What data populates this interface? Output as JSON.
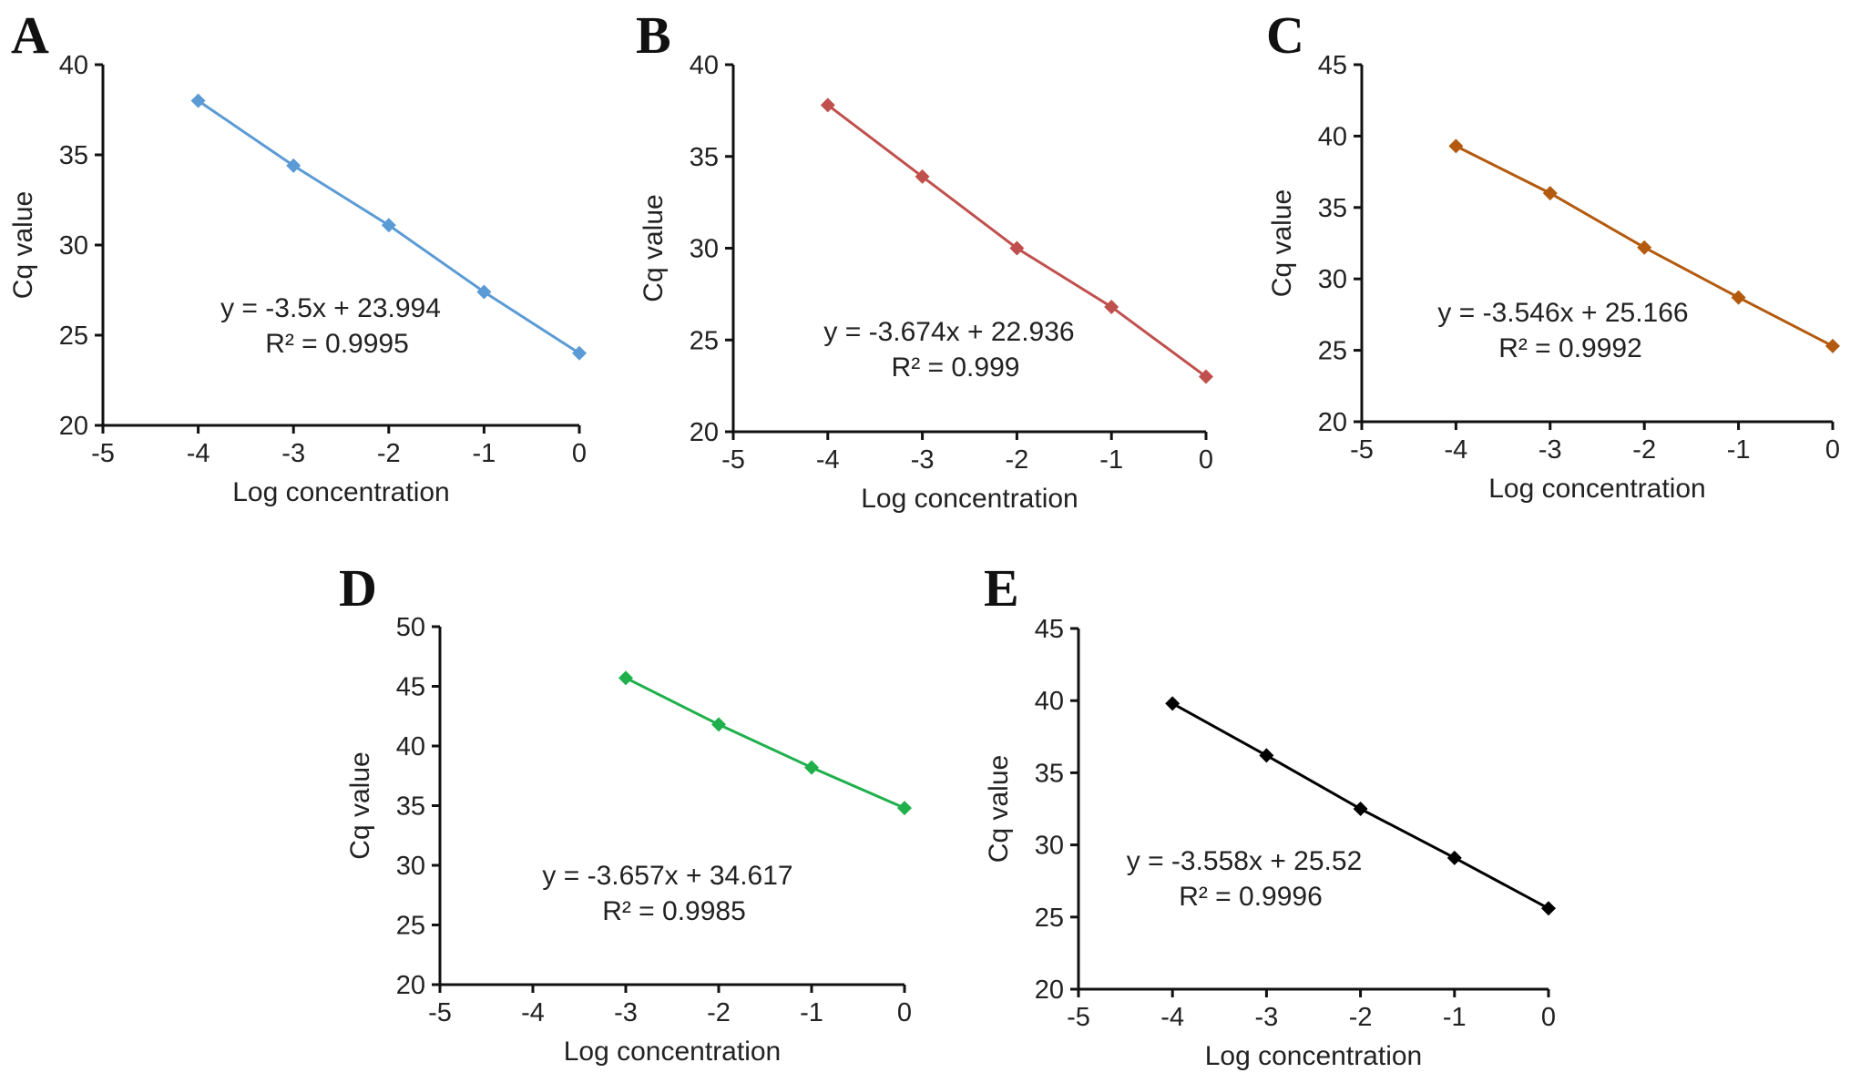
{
  "chart_data": [
    {
      "panel": "A",
      "type": "line",
      "x": [
        -4,
        -3,
        -2,
        -1,
        0
      ],
      "y": [
        38.0,
        34.4,
        31.1,
        27.4,
        24.0
      ],
      "color": "#5b9bd5",
      "xlabel": "Log concentration",
      "ylabel": "Cq value",
      "xlim": [
        -5,
        0
      ],
      "ylim": [
        20,
        40
      ],
      "xticks": [
        "-5",
        "-4",
        "-3",
        "-2",
        "-1",
        "0"
      ],
      "yticks": [
        "20",
        "25",
        "30",
        "35",
        "40"
      ],
      "equation": "y = -3.5x + 23.994",
      "r2": "R² = 0.9995",
      "grid": false
    },
    {
      "panel": "B",
      "type": "line",
      "x": [
        -4,
        -3,
        -2,
        -1,
        0
      ],
      "y": [
        37.8,
        33.9,
        30.0,
        26.8,
        23.0
      ],
      "color": "#c0504d",
      "xlabel": "Log concentration",
      "ylabel": "Cq value",
      "xlim": [
        -5,
        0
      ],
      "ylim": [
        20,
        40
      ],
      "xticks": [
        "-5",
        "-4",
        "-3",
        "-2",
        "-1",
        "0"
      ],
      "yticks": [
        "20",
        "25",
        "30",
        "35",
        "40"
      ],
      "equation": "y = -3.674x + 22.936",
      "r2": "R² = 0.999",
      "grid": false
    },
    {
      "panel": "C",
      "type": "line",
      "x": [
        -4,
        -3,
        -2,
        -1,
        0
      ],
      "y": [
        39.3,
        36.0,
        32.2,
        28.7,
        25.3
      ],
      "color": "#b35a0e",
      "xlabel": "Log concentration",
      "ylabel": "Cq value",
      "xlim": [
        -5,
        0
      ],
      "ylim": [
        20,
        45
      ],
      "xticks": [
        "-5",
        "-4",
        "-3",
        "-2",
        "-1",
        "0"
      ],
      "yticks": [
        "20",
        "25",
        "30",
        "35",
        "40",
        "45"
      ],
      "equation": "y = -3.546x + 25.166",
      "r2": "R² = 0.9992",
      "grid": false
    },
    {
      "panel": "D",
      "type": "line",
      "x": [
        -3,
        -2,
        -1,
        0
      ],
      "y": [
        45.7,
        41.8,
        38.2,
        34.8
      ],
      "color": "#1fb04c",
      "xlabel": "Log concentration",
      "ylabel": "Cq value",
      "xlim": [
        -5,
        0
      ],
      "ylim": [
        20,
        50
      ],
      "xticks": [
        "-5",
        "-4",
        "-3",
        "-2",
        "-1",
        "0"
      ],
      "yticks": [
        "20",
        "25",
        "30",
        "35",
        "40",
        "45",
        "50"
      ],
      "equation": "y = -3.657x + 34.617",
      "r2": "R² = 0.9985",
      "grid": false
    },
    {
      "panel": "E",
      "type": "line",
      "x": [
        -4,
        -3,
        -2,
        -1,
        0
      ],
      "y": [
        39.8,
        36.2,
        32.5,
        29.1,
        25.6
      ],
      "color": "#000000",
      "xlabel": "Log concentration",
      "ylabel": "Cq value",
      "xlim": [
        -5,
        0
      ],
      "ylim": [
        20,
        45
      ],
      "xticks": [
        "-5",
        "-4",
        "-3",
        "-2",
        "-1",
        "0"
      ],
      "yticks": [
        "20",
        "25",
        "30",
        "35",
        "40",
        "45"
      ],
      "equation": "y = -3.558x + 25.52",
      "r2": "R² = 0.9996",
      "grid": false
    }
  ]
}
